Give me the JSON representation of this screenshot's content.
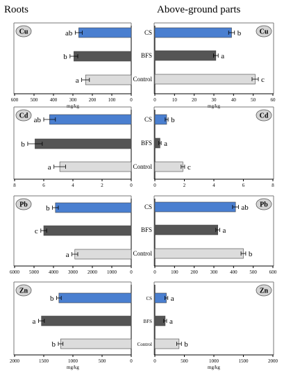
{
  "headers": {
    "left": "Roots",
    "right": "Above-ground parts"
  },
  "colors": {
    "CS": "#4a7fd0",
    "BFS": "#555555",
    "Control": "#dcdcdc"
  },
  "unit_label": "mg/kg",
  "chart_data": [
    {
      "type": "bar",
      "orientation": "horizontal",
      "axis_reversed": true,
      "part": "Roots",
      "element": "Cu",
      "categories": [
        "CS",
        "BFS",
        "Control"
      ],
      "values": [
        270,
        295,
        235
      ],
      "errors": [
        18,
        20,
        20
      ],
      "significance": [
        "ab",
        "b",
        "a"
      ],
      "xlim": [
        0,
        600
      ],
      "ticks": [
        0,
        100,
        200,
        300,
        400,
        500,
        600
      ],
      "tick_labels": [
        "0",
        "100",
        "200",
        "300",
        "400",
        "500",
        "600"
      ],
      "xlabel": "mg/kg",
      "category_labels_shown": false,
      "grid": false
    },
    {
      "type": "bar",
      "orientation": "horizontal",
      "axis_reversed": false,
      "part": "Above-ground parts",
      "element": "Cu",
      "categories": [
        "CS",
        "BFS",
        "Control"
      ],
      "values": [
        39,
        31,
        51
      ],
      "errors": [
        1.5,
        1.2,
        1.6
      ],
      "significance": [
        "b",
        "a",
        "c"
      ],
      "xlim": [
        0,
        60
      ],
      "ticks": [
        0,
        10,
        20,
        30,
        40,
        50,
        60
      ],
      "tick_labels": [
        "0",
        "10",
        "20",
        "30",
        "40",
        "50",
        "60"
      ],
      "xlabel": "mg/kg",
      "category_labels_shown": true,
      "grid": false
    },
    {
      "type": "bar",
      "orientation": "horizontal",
      "axis_reversed": true,
      "part": "Roots",
      "element": "Cd",
      "categories": [
        "CS",
        "BFS",
        "Control"
      ],
      "values": [
        5.6,
        6.6,
        4.9
      ],
      "errors": [
        0.4,
        0.5,
        0.4
      ],
      "significance": [
        "ab",
        "b",
        "a"
      ],
      "xlim": [
        0,
        8
      ],
      "ticks": [
        0,
        2,
        4,
        6,
        8
      ],
      "tick_labels": [
        "0",
        "2",
        "4",
        "6",
        "8"
      ],
      "xlabel": "",
      "category_labels_shown": false,
      "grid": false
    },
    {
      "type": "bar",
      "orientation": "horizontal",
      "axis_reversed": false,
      "part": "Above-ground parts",
      "element": "Cd",
      "categories": [
        "CS",
        "BFS",
        "Control"
      ],
      "values": [
        0.8,
        0.35,
        1.9
      ],
      "errors": [
        0.1,
        0.08,
        0.12
      ],
      "significance": [
        "b",
        "a",
        "c"
      ],
      "xlim": [
        0,
        8
      ],
      "ticks": [
        0,
        2,
        4,
        6,
        8
      ],
      "tick_labels": [
        "0",
        "2",
        "4",
        "6",
        "8"
      ],
      "xlabel": "",
      "category_labels_shown": true,
      "grid": false
    },
    {
      "type": "bar",
      "orientation": "horizontal",
      "axis_reversed": true,
      "part": "Roots",
      "element": "Pb",
      "categories": [
        "CS",
        "BFS",
        "Control"
      ],
      "values": [
        3900,
        4500,
        2900
      ],
      "errors": [
        150,
        150,
        150
      ],
      "significance": [
        "b",
        "c",
        "a"
      ],
      "xlim": [
        0,
        6000
      ],
      "ticks": [
        0,
        1000,
        2000,
        3000,
        4000,
        5000,
        6000
      ],
      "tick_labels": [
        "0",
        "1000",
        "2000",
        "3000",
        "4000",
        "5000",
        "6000"
      ],
      "xlabel": "",
      "category_labels_shown": false,
      "grid": false
    },
    {
      "type": "bar",
      "orientation": "horizontal",
      "axis_reversed": false,
      "part": "Above-ground parts",
      "element": "Pb",
      "categories": [
        "CS",
        "BFS",
        "Control"
      ],
      "values": [
        410,
        320,
        450
      ],
      "errors": [
        15,
        10,
        12
      ],
      "significance": [
        "ab",
        "a",
        "b"
      ],
      "xlim": [
        0,
        600
      ],
      "ticks": [
        0,
        100,
        200,
        300,
        400,
        500,
        600
      ],
      "tick_labels": [
        "0",
        "100",
        "200",
        "300",
        "400",
        "500",
        "600"
      ],
      "xlabel": "",
      "category_labels_shown": true,
      "grid": false
    },
    {
      "type": "bar",
      "orientation": "horizontal",
      "axis_reversed": true,
      "part": "Roots",
      "element": "Zn",
      "categories": [
        "CS",
        "BFS",
        "Control"
      ],
      "values": [
        1240,
        1540,
        1210
      ],
      "errors": [
        40,
        50,
        40
      ],
      "significance": [
        "b",
        "a",
        "b"
      ],
      "xlim": [
        0,
        2000
      ],
      "ticks": [
        0,
        500,
        1000,
        1500,
        2000
      ],
      "tick_labels": [
        "0",
        "500",
        "1000",
        "1500",
        "2000"
      ],
      "xlabel": "mg/kg",
      "category_labels_shown": false,
      "grid": false
    },
    {
      "type": "bar",
      "orientation": "horizontal",
      "axis_reversed": false,
      "part": "Above-ground parts",
      "element": "Zn",
      "categories": [
        "CS",
        "BFS",
        "Control"
      ],
      "values": [
        195,
        175,
        410
      ],
      "errors": [
        25,
        25,
        40
      ],
      "significance": [
        "a",
        "a",
        "b"
      ],
      "xlim": [
        0,
        2000
      ],
      "ticks": [
        0,
        500,
        1000,
        1500,
        2000
      ],
      "tick_labels": [
        "0",
        "500",
        "1000",
        "1500",
        "2000"
      ],
      "xlabel": "mg/kg",
      "category_labels_shown": true,
      "grid": false
    }
  ]
}
